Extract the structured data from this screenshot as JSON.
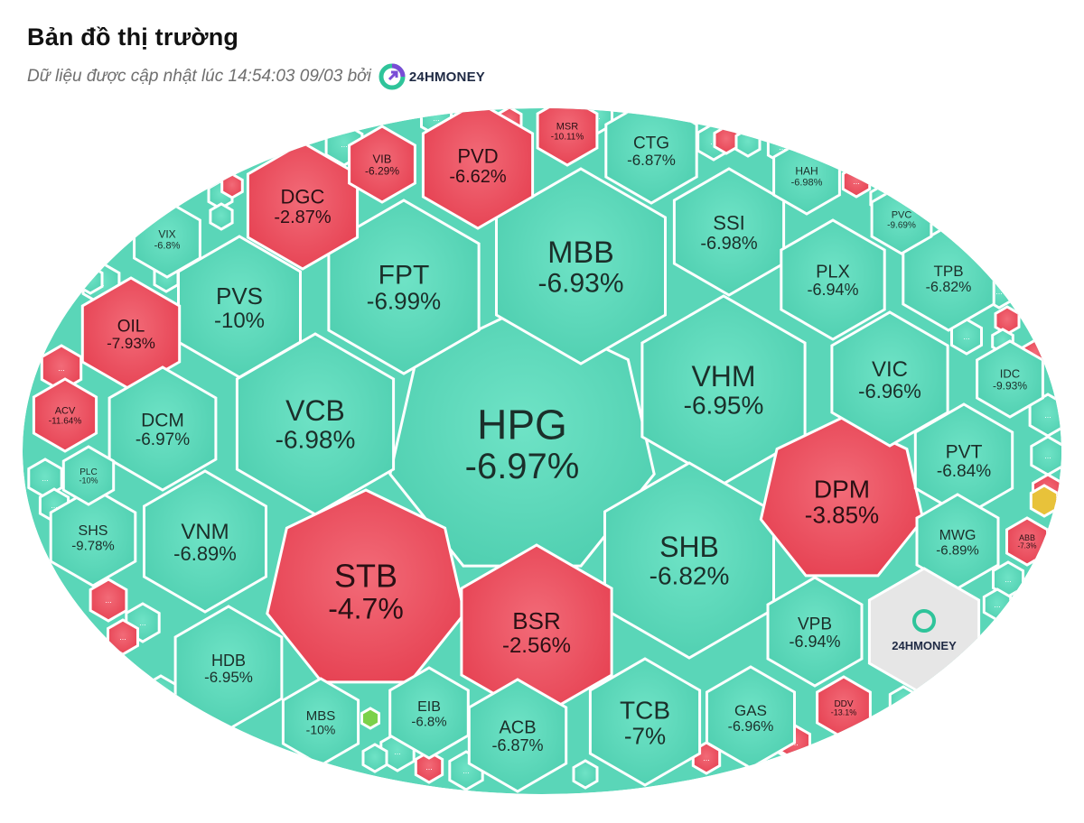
{
  "header": {
    "title": "Bản đồ thị trường",
    "subtitle": "Dữ liệu được cập nhật lúc 14:54:03 09/03 bởi",
    "brand": "24HMONEY"
  },
  "colors": {
    "down": "#ea4e5e",
    "floor": "#5ad6b8",
    "ref": "#e8c23a",
    "up": "#7bd14a",
    "logo_cell": "#e6e6e6"
  },
  "tiles": [
    {
      "code": "HPG",
      "change": "-6.97%",
      "status": "floor"
    },
    {
      "code": "MBB",
      "change": "-6.93%",
      "status": "floor"
    },
    {
      "code": "FPT",
      "change": "-6.99%",
      "status": "floor"
    },
    {
      "code": "VCB",
      "change": "-6.98%",
      "status": "floor"
    },
    {
      "code": "VHM",
      "change": "-6.95%",
      "status": "floor"
    },
    {
      "code": "SHB",
      "change": "-6.82%",
      "status": "floor"
    },
    {
      "code": "STB",
      "change": "-4.7%",
      "status": "down"
    },
    {
      "code": "BSR",
      "change": "-2.56%",
      "status": "down"
    },
    {
      "code": "DPM",
      "change": "-3.85%",
      "status": "down"
    },
    {
      "code": "DGC",
      "change": "-2.87%",
      "status": "down"
    },
    {
      "code": "PVD",
      "change": "-6.62%",
      "status": "down"
    },
    {
      "code": "PVS",
      "change": "-10%",
      "status": "floor"
    },
    {
      "code": "OIL",
      "change": "-7.93%",
      "status": "down"
    },
    {
      "code": "DCM",
      "change": "-6.97%",
      "status": "floor"
    },
    {
      "code": "VNM",
      "change": "-6.89%",
      "status": "floor"
    },
    {
      "code": "SHS",
      "change": "-9.78%",
      "status": "floor"
    },
    {
      "code": "HDB",
      "change": "-6.95%",
      "status": "floor"
    },
    {
      "code": "TCB",
      "change": "-7%",
      "status": "floor"
    },
    {
      "code": "ACB",
      "change": "-6.87%",
      "status": "floor"
    },
    {
      "code": "EIB",
      "change": "-6.8%",
      "status": "floor"
    },
    {
      "code": "MBS",
      "change": "-10%",
      "status": "floor"
    },
    {
      "code": "GAS",
      "change": "-6.96%",
      "status": "floor"
    },
    {
      "code": "VPB",
      "change": "-6.94%",
      "status": "floor"
    },
    {
      "code": "CTG",
      "change": "-6.87%",
      "status": "floor"
    },
    {
      "code": "SSI",
      "change": "-6.98%",
      "status": "floor"
    },
    {
      "code": "PLX",
      "change": "-6.94%",
      "status": "floor"
    },
    {
      "code": "VIC",
      "change": "-6.96%",
      "status": "floor"
    },
    {
      "code": "PVT",
      "change": "-6.84%",
      "status": "floor"
    },
    {
      "code": "MWG",
      "change": "-6.89%",
      "status": "floor"
    },
    {
      "code": "TPB",
      "change": "-6.82%",
      "status": "floor"
    },
    {
      "code": "HAH",
      "change": "-6.98%",
      "status": "floor"
    },
    {
      "code": "IDC",
      "change": "-9.93%",
      "status": "floor"
    },
    {
      "code": "PVC",
      "change": "-9.69%",
      "status": "floor"
    },
    {
      "code": "VIB",
      "change": "-6.29%",
      "status": "down"
    },
    {
      "code": "MSR",
      "change": "-10.11%",
      "status": "down"
    },
    {
      "code": "VIX",
      "change": "-6.8%",
      "status": "floor"
    },
    {
      "code": "ACV",
      "change": "-11.64%",
      "status": "down"
    },
    {
      "code": "PLC",
      "change": "-10%",
      "status": "floor"
    },
    {
      "code": "ABB",
      "change": "-7.3%",
      "status": "down"
    },
    {
      "code": "DDV",
      "change": "-13.1%",
      "status": "down"
    }
  ],
  "more_label": "..."
}
